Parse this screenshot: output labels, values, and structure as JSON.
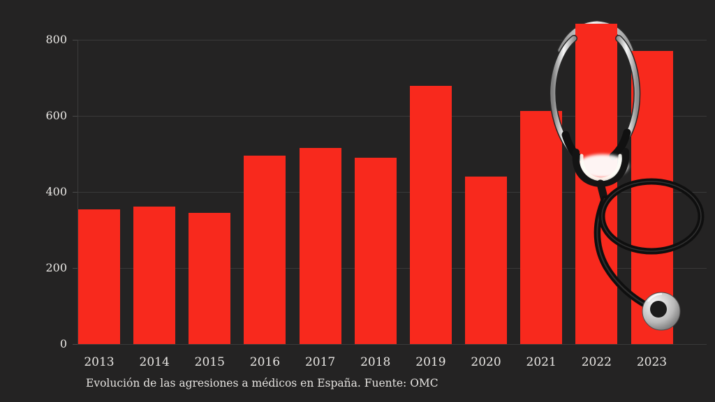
{
  "chart_data": {
    "type": "bar",
    "categories": [
      "2013",
      "2014",
      "2015",
      "2016",
      "2017",
      "2018",
      "2019",
      "2020",
      "2021",
      "2022",
      "2023"
    ],
    "values": [
      355,
      362,
      345,
      495,
      515,
      490,
      678,
      441,
      612,
      843,
      770
    ],
    "title": "",
    "xlabel": "",
    "ylabel": "",
    "y_ticks": [
      0,
      200,
      400,
      600,
      800
    ],
    "ylim": [
      0,
      800
    ],
    "grid": true,
    "legend": false,
    "caption": "Evolución de las agresiones a médicos en España. Fuente: OMC",
    "bar_color": "#f8291d",
    "background_color": "#242323",
    "text_color": "#e9e7e4",
    "gridline_color": "#3a3a3a"
  },
  "decoration": {
    "overlay": "stethoscope-icon"
  }
}
